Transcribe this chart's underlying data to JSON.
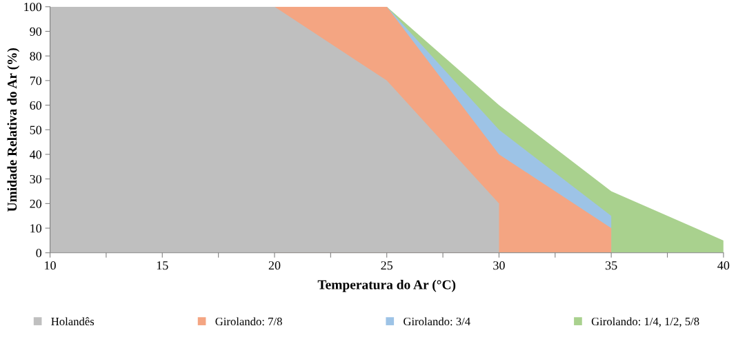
{
  "chart_data": {
    "type": "area",
    "xlabel": "Temperatura do Ar (°C)",
    "ylabel": "Umidade Relativa do Ar (%)",
    "series": [
      {
        "name": "Girolando: 1/4, 1/2, 5/8",
        "color": "#a9d18e",
        "x": [
          25,
          30,
          35,
          40
        ],
        "values": [
          100,
          60,
          25,
          5
        ]
      },
      {
        "name": "Girolando: 3/4",
        "color": "#9dc3e6",
        "x": [
          25,
          30,
          35
        ],
        "values": [
          100,
          50,
          15
        ]
      },
      {
        "name": "Girolando: 7/8",
        "color": "#f4a582",
        "x": [
          20,
          25,
          30,
          35
        ],
        "values": [
          100,
          100,
          40,
          10
        ]
      },
      {
        "name": "Holandês",
        "color": "#bfbfbf",
        "x": [
          10,
          20,
          25,
          30
        ],
        "values": [
          100,
          100,
          70,
          20
        ]
      }
    ],
    "xlim": [
      10,
      40
    ],
    "xticks": [
      10,
      {
        "value": 12.5,
        "label": null
      },
      15,
      {
        "value": 17.5,
        "label": null
      },
      20,
      {
        "value": 22.5,
        "label": null
      },
      25,
      {
        "value": 27.5,
        "label": null
      },
      30,
      {
        "value": 32.5,
        "label": null
      },
      35,
      {
        "value": 37.5,
        "label": null
      },
      40
    ],
    "ylim": [
      0,
      100
    ],
    "yticks": [
      0,
      10,
      20,
      30,
      40,
      50,
      60,
      70,
      80,
      90,
      100
    ],
    "grid": false,
    "legend": "bottom"
  }
}
